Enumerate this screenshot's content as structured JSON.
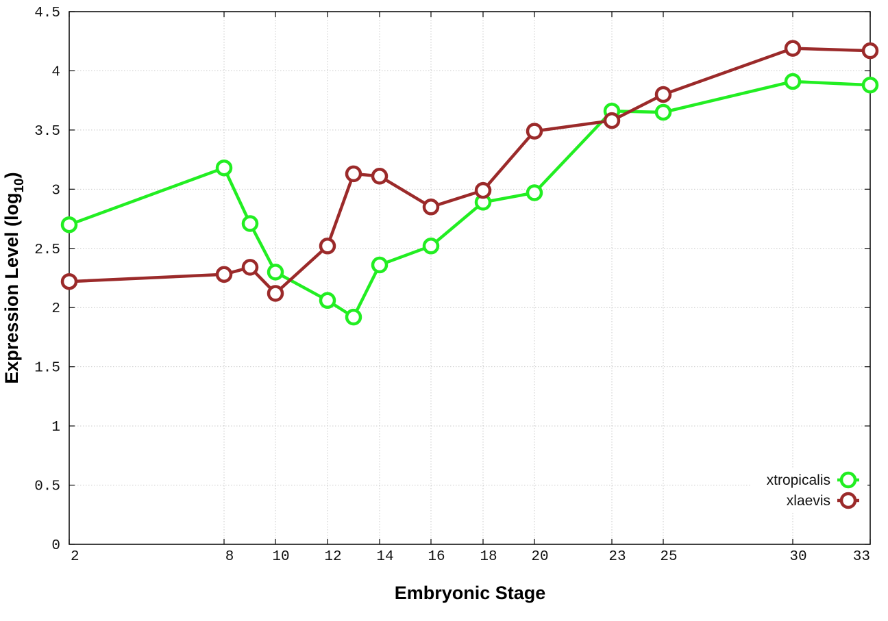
{
  "chart_data": {
    "type": "line",
    "xlabel": "Embryonic Stage",
    "ylabel": "Expression Level (log",
    "ylabel_subscript": "10",
    "ylabel_close": ")",
    "x_ticks": [
      2,
      8,
      10,
      12,
      14,
      16,
      18,
      20,
      23,
      25,
      30,
      33
    ],
    "x_tick_labels": [
      "2",
      "8",
      "10",
      "12",
      "14",
      "16",
      "18",
      "20",
      "23",
      "25",
      "30",
      "33"
    ],
    "y_ticks": [
      0,
      0.5,
      1,
      1.5,
      2,
      2.5,
      3,
      3.5,
      4,
      4.5
    ],
    "y_tick_labels": [
      "0",
      "0.5",
      "1",
      "1.5",
      "2",
      "2.5",
      "3",
      "3.5",
      "4",
      "4.5"
    ],
    "xlim": [
      2,
      33
    ],
    "ylim": [
      0,
      4.5
    ],
    "grid": true,
    "legend_position": "bottom-right",
    "series": [
      {
        "name": "xtropicalis",
        "color": "#22ee22",
        "x": [
          2,
          8,
          9,
          10,
          12,
          13,
          14,
          16,
          18,
          20,
          23,
          25,
          30,
          33
        ],
        "y": [
          2.7,
          3.18,
          2.71,
          2.3,
          2.06,
          1.92,
          2.36,
          2.52,
          2.89,
          2.97,
          3.66,
          3.65,
          3.91,
          3.88
        ]
      },
      {
        "name": "xlaevis",
        "color": "#9b2a2a",
        "x": [
          2,
          8,
          9,
          10,
          12,
          13,
          14,
          16,
          18,
          20,
          23,
          25,
          30,
          33
        ],
        "y": [
          2.22,
          2.28,
          2.34,
          2.12,
          2.52,
          3.13,
          3.11,
          2.85,
          2.99,
          3.49,
          3.58,
          3.8,
          4.19,
          4.17
        ]
      }
    ]
  }
}
